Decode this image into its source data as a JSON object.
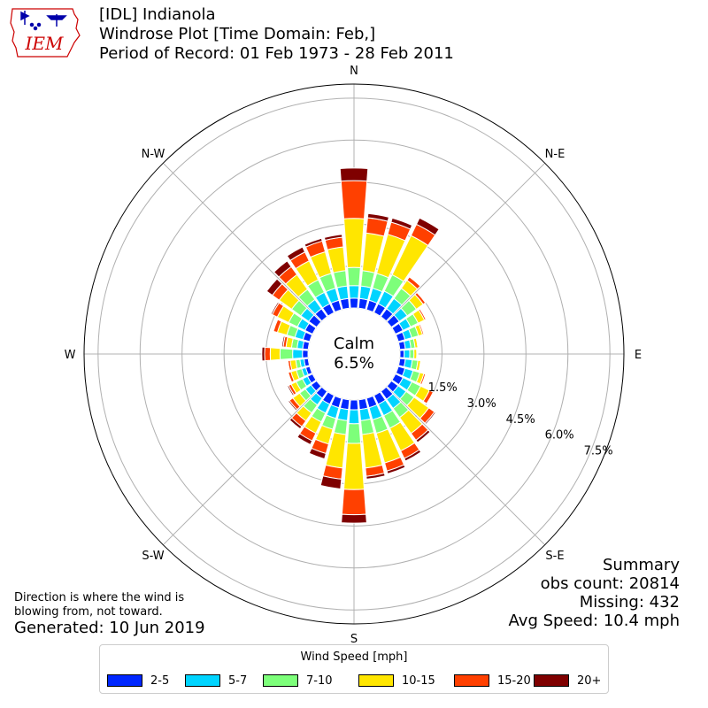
{
  "header": {
    "title_line1": "[IDL] Indianola",
    "title_line2": "Windrose Plot [Time Domain: Feb,]",
    "title_line3": "Period of Record: 01 Feb 1973 - 28 Feb 2011",
    "logo_text": "IEM"
  },
  "chart_data": {
    "type": "windrose",
    "directions": [
      "N",
      "N-E",
      "E",
      "S-E",
      "S",
      "S-W",
      "W",
      "N-W"
    ],
    "radial_labels": [
      "1.5%",
      "3.0%",
      "4.5%",
      "6.0%",
      "7.5%"
    ],
    "rmax_percent": 8.0,
    "calm_label": "Calm",
    "calm_percent": "6.5%",
    "speed_bins": [
      {
        "label": "2-5",
        "color": "#0027ff"
      },
      {
        "label": "5-7",
        "color": "#00d4ff"
      },
      {
        "label": "7-10",
        "color": "#7dff7a"
      },
      {
        "label": "10-15",
        "color": "#ffe600"
      },
      {
        "label": "15-20",
        "color": "#ff4000"
      },
      {
        "label": "20+",
        "color": "#7f0000"
      }
    ],
    "sectors": [
      {
        "dir": 0,
        "values": [
          0.35,
          0.45,
          0.65,
          1.75,
          1.35,
          0.45
        ]
      },
      {
        "dir": 10,
        "values": [
          0.35,
          0.45,
          0.55,
          1.35,
          0.55,
          0.15
        ]
      },
      {
        "dir": 20,
        "values": [
          0.35,
          0.45,
          0.55,
          1.45,
          0.45,
          0.15
        ]
      },
      {
        "dir": 30,
        "values": [
          0.35,
          0.5,
          0.65,
          1.55,
          0.45,
          0.25
        ]
      },
      {
        "dir": 40,
        "values": [
          0.35,
          0.45,
          0.45,
          0.35,
          0.15,
          0.03
        ]
      },
      {
        "dir": 50,
        "values": [
          0.35,
          0.35,
          0.4,
          0.3,
          0.1,
          0.03
        ]
      },
      {
        "dir": 60,
        "values": [
          0.3,
          0.3,
          0.3,
          0.25,
          0.06,
          0.02
        ]
      },
      {
        "dir": 70,
        "values": [
          0.25,
          0.25,
          0.25,
          0.15,
          0.05,
          0.01
        ]
      },
      {
        "dir": 80,
        "values": [
          0.2,
          0.2,
          0.15,
          0.1,
          0.03,
          0.01
        ]
      },
      {
        "dir": 90,
        "values": [
          0.15,
          0.2,
          0.15,
          0.1,
          0.03,
          0.01
        ]
      },
      {
        "dir": 100,
        "values": [
          0.2,
          0.25,
          0.2,
          0.1,
          0.03,
          0.01
        ]
      },
      {
        "dir": 110,
        "values": [
          0.25,
          0.3,
          0.25,
          0.15,
          0.06,
          0.02
        ]
      },
      {
        "dir": 120,
        "values": [
          0.3,
          0.35,
          0.35,
          0.35,
          0.15,
          0.03
        ]
      },
      {
        "dir": 130,
        "values": [
          0.3,
          0.35,
          0.35,
          0.65,
          0.25,
          0.05
        ]
      },
      {
        "dir": 140,
        "values": [
          0.35,
          0.4,
          0.4,
          0.7,
          0.3,
          0.1
        ]
      },
      {
        "dir": 150,
        "values": [
          0.35,
          0.45,
          0.5,
          0.9,
          0.3,
          0.1
        ]
      },
      {
        "dir": 160,
        "values": [
          0.35,
          0.45,
          0.5,
          1.1,
          0.3,
          0.1
        ]
      },
      {
        "dir": 170,
        "values": [
          0.35,
          0.4,
          0.5,
          1.2,
          0.3,
          0.1
        ]
      },
      {
        "dir": 180,
        "values": [
          0.35,
          0.5,
          0.7,
          1.65,
          0.9,
          0.3
        ]
      },
      {
        "dir": 190,
        "values": [
          0.35,
          0.4,
          0.5,
          1.2,
          0.4,
          0.35
        ]
      },
      {
        "dir": 200,
        "values": [
          0.35,
          0.4,
          0.4,
          0.55,
          0.35,
          0.2
        ]
      },
      {
        "dir": 210,
        "values": [
          0.35,
          0.35,
          0.35,
          0.45,
          0.3,
          0.15
        ]
      },
      {
        "dir": 220,
        "values": [
          0.3,
          0.3,
          0.35,
          0.35,
          0.25,
          0.1
        ]
      },
      {
        "dir": 230,
        "values": [
          0.25,
          0.25,
          0.25,
          0.3,
          0.15,
          0.05
        ]
      },
      {
        "dir": 240,
        "values": [
          0.2,
          0.2,
          0.25,
          0.2,
          0.1,
          0.05
        ]
      },
      {
        "dir": 250,
        "values": [
          0.15,
          0.15,
          0.2,
          0.2,
          0.1,
          0.03
        ]
      },
      {
        "dir": 260,
        "values": [
          0.15,
          0.15,
          0.15,
          0.2,
          0.08,
          0.02
        ]
      },
      {
        "dir": 270,
        "values": [
          0.2,
          0.35,
          0.45,
          0.35,
          0.2,
          0.1
        ]
      },
      {
        "dir": 280,
        "values": [
          0.2,
          0.2,
          0.2,
          0.2,
          0.1,
          0.05
        ]
      },
      {
        "dir": 290,
        "values": [
          0.25,
          0.3,
          0.3,
          0.35,
          0.15,
          0.03
        ]
      },
      {
        "dir": 300,
        "values": [
          0.3,
          0.3,
          0.35,
          0.45,
          0.2,
          0.05
        ]
      },
      {
        "dir": 310,
        "values": [
          0.35,
          0.35,
          0.4,
          0.55,
          0.3,
          0.25
        ]
      },
      {
        "dir": 320,
        "values": [
          0.35,
          0.4,
          0.45,
          0.65,
          0.35,
          0.25
        ]
      },
      {
        "dir": 330,
        "values": [
          0.35,
          0.45,
          0.5,
          0.75,
          0.35,
          0.2
        ]
      },
      {
        "dir": 340,
        "values": [
          0.35,
          0.45,
          0.55,
          0.8,
          0.4,
          0.1
        ]
      },
      {
        "dir": 350,
        "values": [
          0.35,
          0.45,
          0.55,
          0.85,
          0.35,
          0.1
        ]
      }
    ]
  },
  "summary": {
    "heading": "Summary",
    "obs_count": "obs count: 20814",
    "missing": "Missing: 432",
    "avg_speed": "Avg Speed: 10.4 mph"
  },
  "note": {
    "line1": "Direction is where the wind is",
    "line2": "blowing from, not toward.",
    "generated": "Generated: 10 Jun 2019"
  },
  "legend": {
    "title": "Wind Speed [mph]"
  }
}
